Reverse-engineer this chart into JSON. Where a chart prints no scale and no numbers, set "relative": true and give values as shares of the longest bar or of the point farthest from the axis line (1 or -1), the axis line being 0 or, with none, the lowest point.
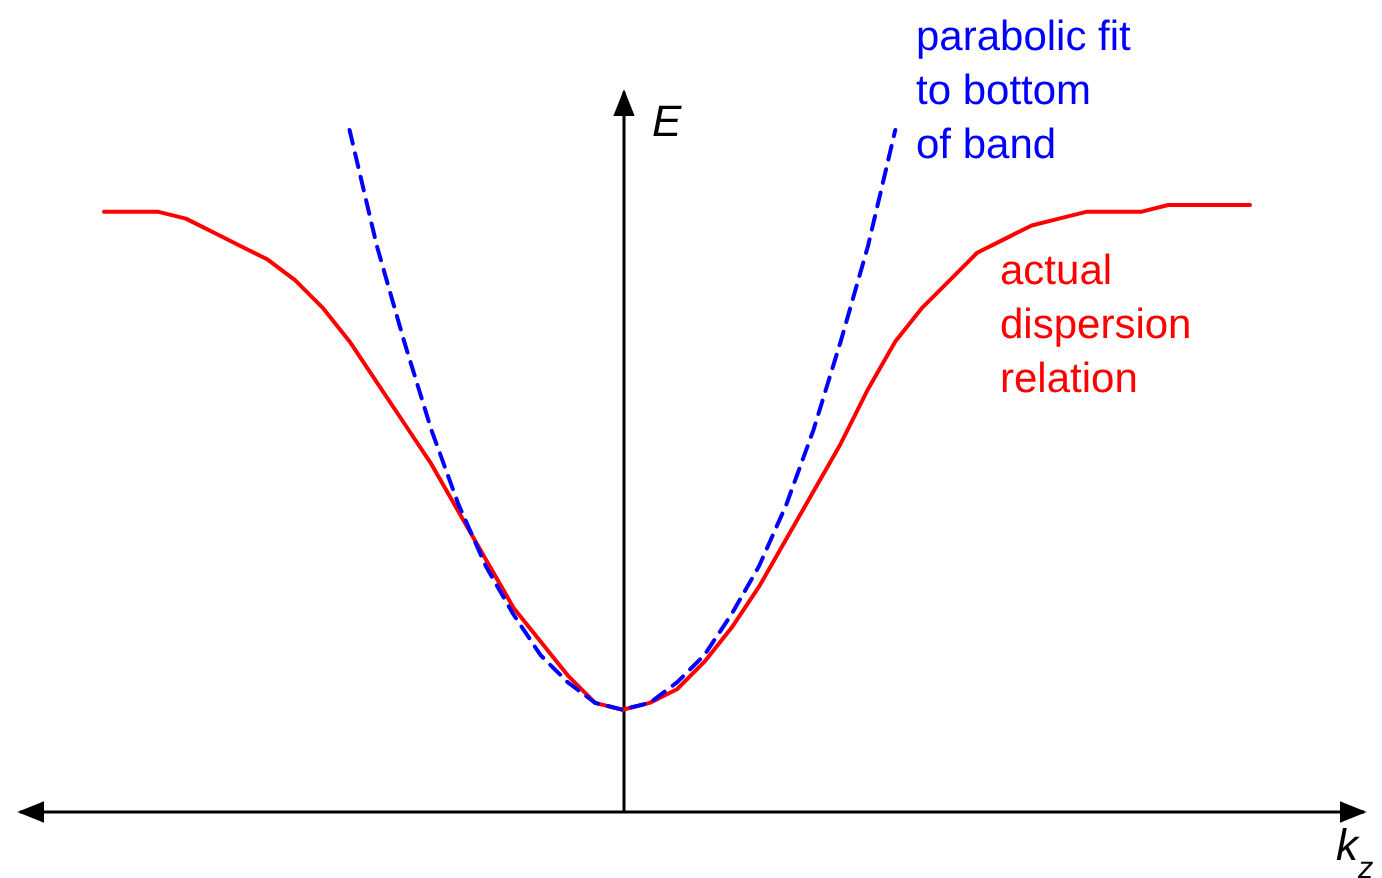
{
  "chart_data": {
    "type": "line",
    "relative": true,
    "xlabel": "k$_{z}$",
    "ylabel": "E",
    "legend": false,
    "marker": "none",
    "categories": [
      null,
      null,
      null,
      null,
      null,
      null,
      null,
      null,
      null,
      null,
      null,
      null,
      null,
      null,
      null,
      null,
      null,
      null,
      null,
      null,
      null,
      null,
      null,
      null,
      null,
      null,
      null,
      null,
      null,
      null,
      null,
      null,
      null,
      null,
      null,
      null,
      null,
      null,
      null,
      null,
      null,
      null,
      null
    ],
    "series": [
      {
        "name": "actual dispersion relation",
        "color": "#ff0000",
        "line_style": "solid",
        "values": [
          0.88,
          0.88,
          0.88,
          0.87,
          0.85,
          0.83,
          0.81,
          0.78,
          0.74,
          0.69,
          0.63,
          0.57,
          0.51,
          0.44,
          0.37,
          0.3,
          0.25,
          0.2,
          0.16,
          0.15,
          0.16,
          0.18,
          0.22,
          0.27,
          0.33,
          0.4,
          0.47,
          0.54,
          0.62,
          0.69,
          0.74,
          0.78,
          0.82,
          0.84,
          0.86,
          0.87,
          0.88,
          0.88,
          0.88,
          0.89,
          0.89,
          0.89,
          0.89
        ]
      },
      {
        "name": "parabolic fit to bottom of band",
        "color": "#0000ff",
        "line_style": "dashed",
        "values": [
          null,
          null,
          null,
          null,
          null,
          null,
          null,
          null,
          null,
          1,
          0.83,
          0.69,
          0.56,
          0.45,
          0.36,
          0.29,
          0.23,
          0.19,
          0.16,
          0.15,
          0.16,
          0.19,
          0.23,
          0.29,
          0.36,
          0.45,
          0.56,
          0.69,
          0.83,
          1,
          null,
          null,
          null,
          null,
          null,
          null,
          null,
          null,
          null,
          null,
          null,
          null,
          null
        ]
      }
    ]
  }
}
